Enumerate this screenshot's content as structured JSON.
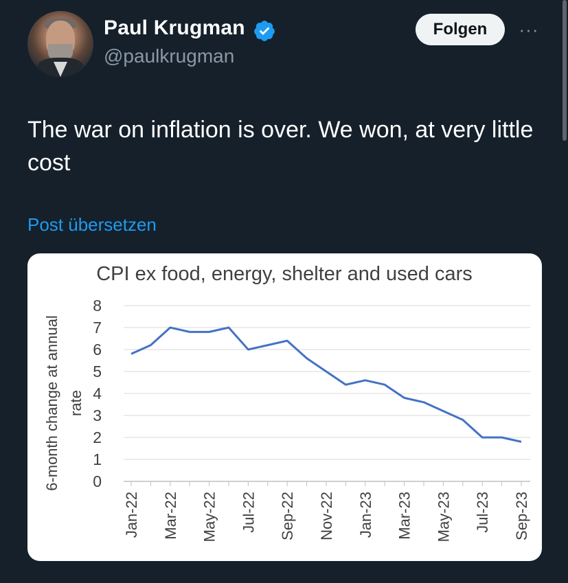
{
  "author": {
    "name": "Paul Krugman",
    "handle": "@paulkrugman",
    "verified": true,
    "avatar_icon": "avatar-photo"
  },
  "header": {
    "follow_label": "Folgen",
    "more_label": "···"
  },
  "tweet": {
    "text": "The war on inflation is over. We won, at very little cost",
    "translate_label": "Post übersetzen"
  },
  "colors": {
    "background": "#15202b",
    "link": "#1d9bf0",
    "verified": "#1d9bf0",
    "line": "#4472c4"
  },
  "chart_data": {
    "type": "line",
    "title": "CPI ex food, energy, shelter and used cars",
    "xlabel": "",
    "ylabel": [
      "6-month change at annual",
      "rate"
    ],
    "ylim": [
      0,
      8
    ],
    "yticks": [
      0,
      1,
      2,
      3,
      4,
      5,
      6,
      7,
      8
    ],
    "grid": true,
    "x": [
      "Jan-22",
      "Feb-22",
      "Mar-22",
      "Apr-22",
      "May-22",
      "Jun-22",
      "Jul-22",
      "Aug-22",
      "Sep-22",
      "Oct-22",
      "Nov-22",
      "Dec-22",
      "Jan-23",
      "Feb-23",
      "Mar-23",
      "Apr-23",
      "May-23",
      "Jun-23",
      "Jul-23",
      "Aug-23",
      "Sep-23"
    ],
    "xtick_labels": [
      "Jan-22",
      "Mar-22",
      "May-22",
      "Jul-22",
      "Sep-22",
      "Nov-22",
      "Jan-23",
      "Mar-23",
      "May-23",
      "Jul-23",
      "Sep-23"
    ],
    "series": [
      {
        "values": [
          5.8,
          6.2,
          7.0,
          6.8,
          6.8,
          7.0,
          6.0,
          6.2,
          6.4,
          5.6,
          5.0,
          4.4,
          4.6,
          4.4,
          3.8,
          3.6,
          3.2,
          2.8,
          2.0,
          2.0,
          1.8
        ]
      }
    ]
  }
}
